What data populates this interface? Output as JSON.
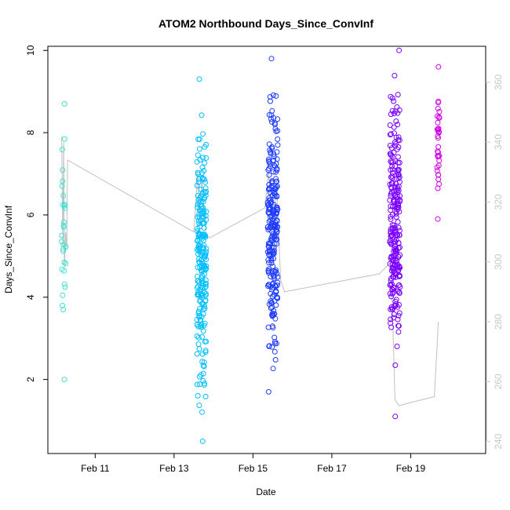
{
  "chart_data": {
    "type": "scatter",
    "title": "ATOM2 Northbound Days_Since_ConvInf",
    "xlabel": "Date",
    "ylabel": "Days_Since_ConvInf",
    "x_ticks": [
      "Feb 11",
      "Feb 13",
      "Feb 15",
      "Feb 17",
      "Feb 19"
    ],
    "x_tick_values": [
      11,
      13,
      15,
      17,
      19
    ],
    "xlim": [
      9.8,
      20.9
    ],
    "y_ticks": [
      2,
      4,
      6,
      8,
      10
    ],
    "ylim": [
      0.2,
      10.1
    ],
    "y2_ticks": [
      240,
      260,
      280,
      300,
      320,
      340,
      360
    ],
    "y2lim": [
      236,
      372
    ],
    "grid": false,
    "legend": "none",
    "clusters": [
      {
        "x_center": 10.2,
        "x_spread": 0.06,
        "y_min": 2.0,
        "y_max": 8.7,
        "n": 30,
        "color": "#40e0d0"
      },
      {
        "x_center": 13.7,
        "x_spread": 0.12,
        "y_min": 0.5,
        "y_max": 9.3,
        "n": 230,
        "color": "#00bfff"
      },
      {
        "x_center": 15.5,
        "x_spread": 0.13,
        "y_min": 1.7,
        "y_max": 9.8,
        "n": 240,
        "color": "#1e3cff"
      },
      {
        "x_center": 18.6,
        "x_spread": 0.13,
        "y_min": 1.1,
        "y_max": 10.0,
        "n": 240,
        "color": "#7a00ff"
      },
      {
        "x_center": 19.7,
        "x_spread": 0.03,
        "y_min": 5.9,
        "y_max": 9.6,
        "n": 35,
        "color": "#d000e8"
      }
    ],
    "secondary_line": {
      "color": "#c0c0c0",
      "x": [
        10.15,
        10.18,
        10.2,
        10.22,
        10.25,
        10.28,
        10.3,
        13.5,
        13.6,
        13.65,
        13.7,
        13.8,
        13.9,
        15.3,
        15.4,
        15.5,
        15.6,
        15.7,
        15.8,
        18.2,
        18.5,
        18.6,
        18.7,
        19.6,
        19.7
      ],
      "y": [
        342,
        305,
        340,
        298,
        310,
        304,
        334,
        310,
        330,
        312,
        328,
        309,
        308,
        318,
        330,
        300,
        327,
        294,
        290,
        296,
        300,
        254,
        252,
        255,
        280
      ]
    }
  }
}
